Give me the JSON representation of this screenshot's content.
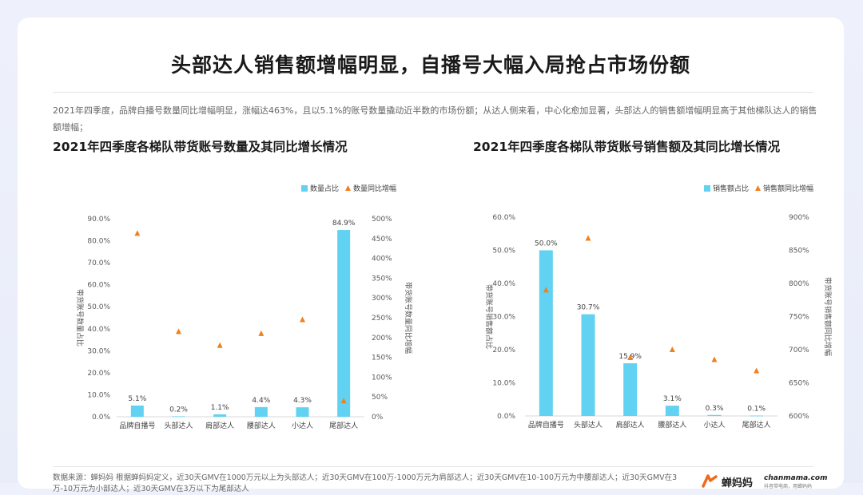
{
  "title": "头部达人销售额增幅明显，自播号大幅入局抢占市场份额",
  "intro": "2021年四季度，品牌自播号数量同比增幅明显，涨幅达463%，且以5.1%的账号数量撬动近半数的市场份额；从达人侧来看，中心化愈加显著，头部达人的销售额增幅明显高于其他梯队达人的销售额增幅；",
  "chart_data": [
    {
      "type": "bar",
      "title": "2021年四季度各梯队带货账号数量及其同比增长情况",
      "categories": [
        "品牌自播号",
        "头部达人",
        "肩部达人",
        "腰部达人",
        "小达人",
        "尾部达人"
      ],
      "series": [
        {
          "name": "数量占比",
          "kind": "bar",
          "axis": "left",
          "color": "#62d2f3",
          "values": [
            5.1,
            0.2,
            1.1,
            4.4,
            4.3,
            84.9
          ],
          "labels": [
            "5.1%",
            "0.2%",
            "1.1%",
            "4.4%",
            "4.3%",
            "84.9%"
          ]
        },
        {
          "name": "数量同比增幅",
          "kind": "marker",
          "axis": "right",
          "color": "#f0801e",
          "values": [
            463,
            215,
            180,
            210,
            245,
            40
          ]
        }
      ],
      "ylabel": "带货账号数量占比",
      "y2label": "带货账号数量同比增幅",
      "ylim": [
        0,
        90
      ],
      "y2lim": [
        0,
        500
      ],
      "yticks": [
        "0.0%",
        "10.0%",
        "20.0%",
        "30.0%",
        "40.0%",
        "50.0%",
        "60.0%",
        "70.0%",
        "80.0%",
        "90.0%"
      ],
      "y2ticks": [
        "0%",
        "50%",
        "100%",
        "150%",
        "200%",
        "250%",
        "300%",
        "350%",
        "400%",
        "450%",
        "500%"
      ],
      "legend": "top-right"
    },
    {
      "type": "bar",
      "title": "2021年四季度各梯队带货账号销售额及其同比增长情况",
      "categories": [
        "品牌自播号",
        "头部达人",
        "肩部达人",
        "腰部达人",
        "小达人",
        "尾部达人"
      ],
      "series": [
        {
          "name": "销售额占比",
          "kind": "bar",
          "axis": "left",
          "color": "#62d2f3",
          "values": [
            50.0,
            30.7,
            15.9,
            3.1,
            0.3,
            0.1
          ],
          "labels": [
            "50.0%",
            "30.7%",
            "15.9%",
            "3.1%",
            "0.3%",
            "0.1%"
          ]
        },
        {
          "name": "销售额同比增幅",
          "kind": "marker",
          "axis": "right",
          "color": "#f0801e",
          "values": [
            790,
            868,
            688,
            700,
            685,
            668
          ]
        }
      ],
      "ylabel": "带货账号销售额占比",
      "y2label": "带货账号销售额同比增幅",
      "ylim": [
        0,
        60
      ],
      "y2lim": [
        600,
        900
      ],
      "yticks": [
        "0.0%",
        "10.0%",
        "20.0%",
        "30.0%",
        "40.0%",
        "50.0%",
        "60.0%"
      ],
      "y2ticks": [
        "600%",
        "650%",
        "700%",
        "750%",
        "800%",
        "850%",
        "900%"
      ],
      "legend": "top-right"
    }
  ],
  "footnote": "数据来源：蝉妈妈 根据蝉妈妈定义，近30天GMV在1000万元以上为头部达人；近30天GMV在100万-1000万元为肩部达人；近30天GMV在10-100万元为中腰部达人；近30天GMV在3万-10万元为小部达人；近30天GMV在3万以下为尾部达人",
  "brand": {
    "name": "蝉妈妈",
    "url": "chanmama.com",
    "slogan": "抖音带电商，用蝉妈妈",
    "logo_color": "#f06a1c"
  }
}
